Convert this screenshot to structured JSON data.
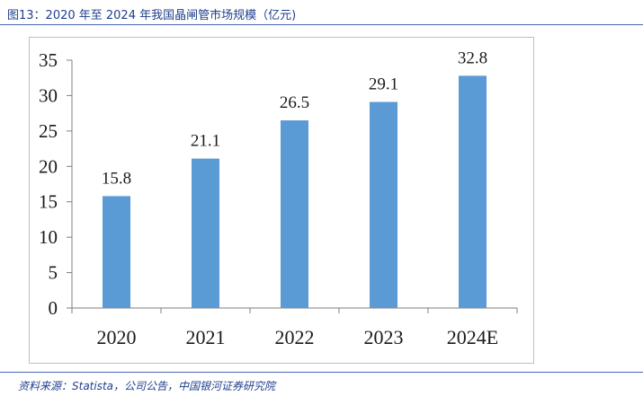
{
  "figure_title": "图13：2020 年至 2024 年我国晶闸管市场规模（亿元)",
  "source_note": "资料来源：Statista，公司公告，中国银河证券研究院",
  "colors": {
    "bar": "#5B9BD5",
    "axis": "#7f7f7f",
    "accent": "#1f3f8c"
  },
  "chart_data": {
    "type": "bar",
    "title": "",
    "xlabel": "",
    "ylabel": "",
    "categories": [
      "2020",
      "2021",
      "2022",
      "2023",
      "2024E"
    ],
    "values": [
      15.8,
      21.1,
      26.5,
      29.1,
      32.8
    ],
    "data_labels": [
      "15.8",
      "21.1",
      "26.5",
      "29.1",
      "32.8"
    ],
    "yticks": [
      0,
      5,
      10,
      15,
      20,
      25,
      30,
      35
    ],
    "ylim": [
      0,
      35
    ],
    "grid": false,
    "legend": "none"
  }
}
